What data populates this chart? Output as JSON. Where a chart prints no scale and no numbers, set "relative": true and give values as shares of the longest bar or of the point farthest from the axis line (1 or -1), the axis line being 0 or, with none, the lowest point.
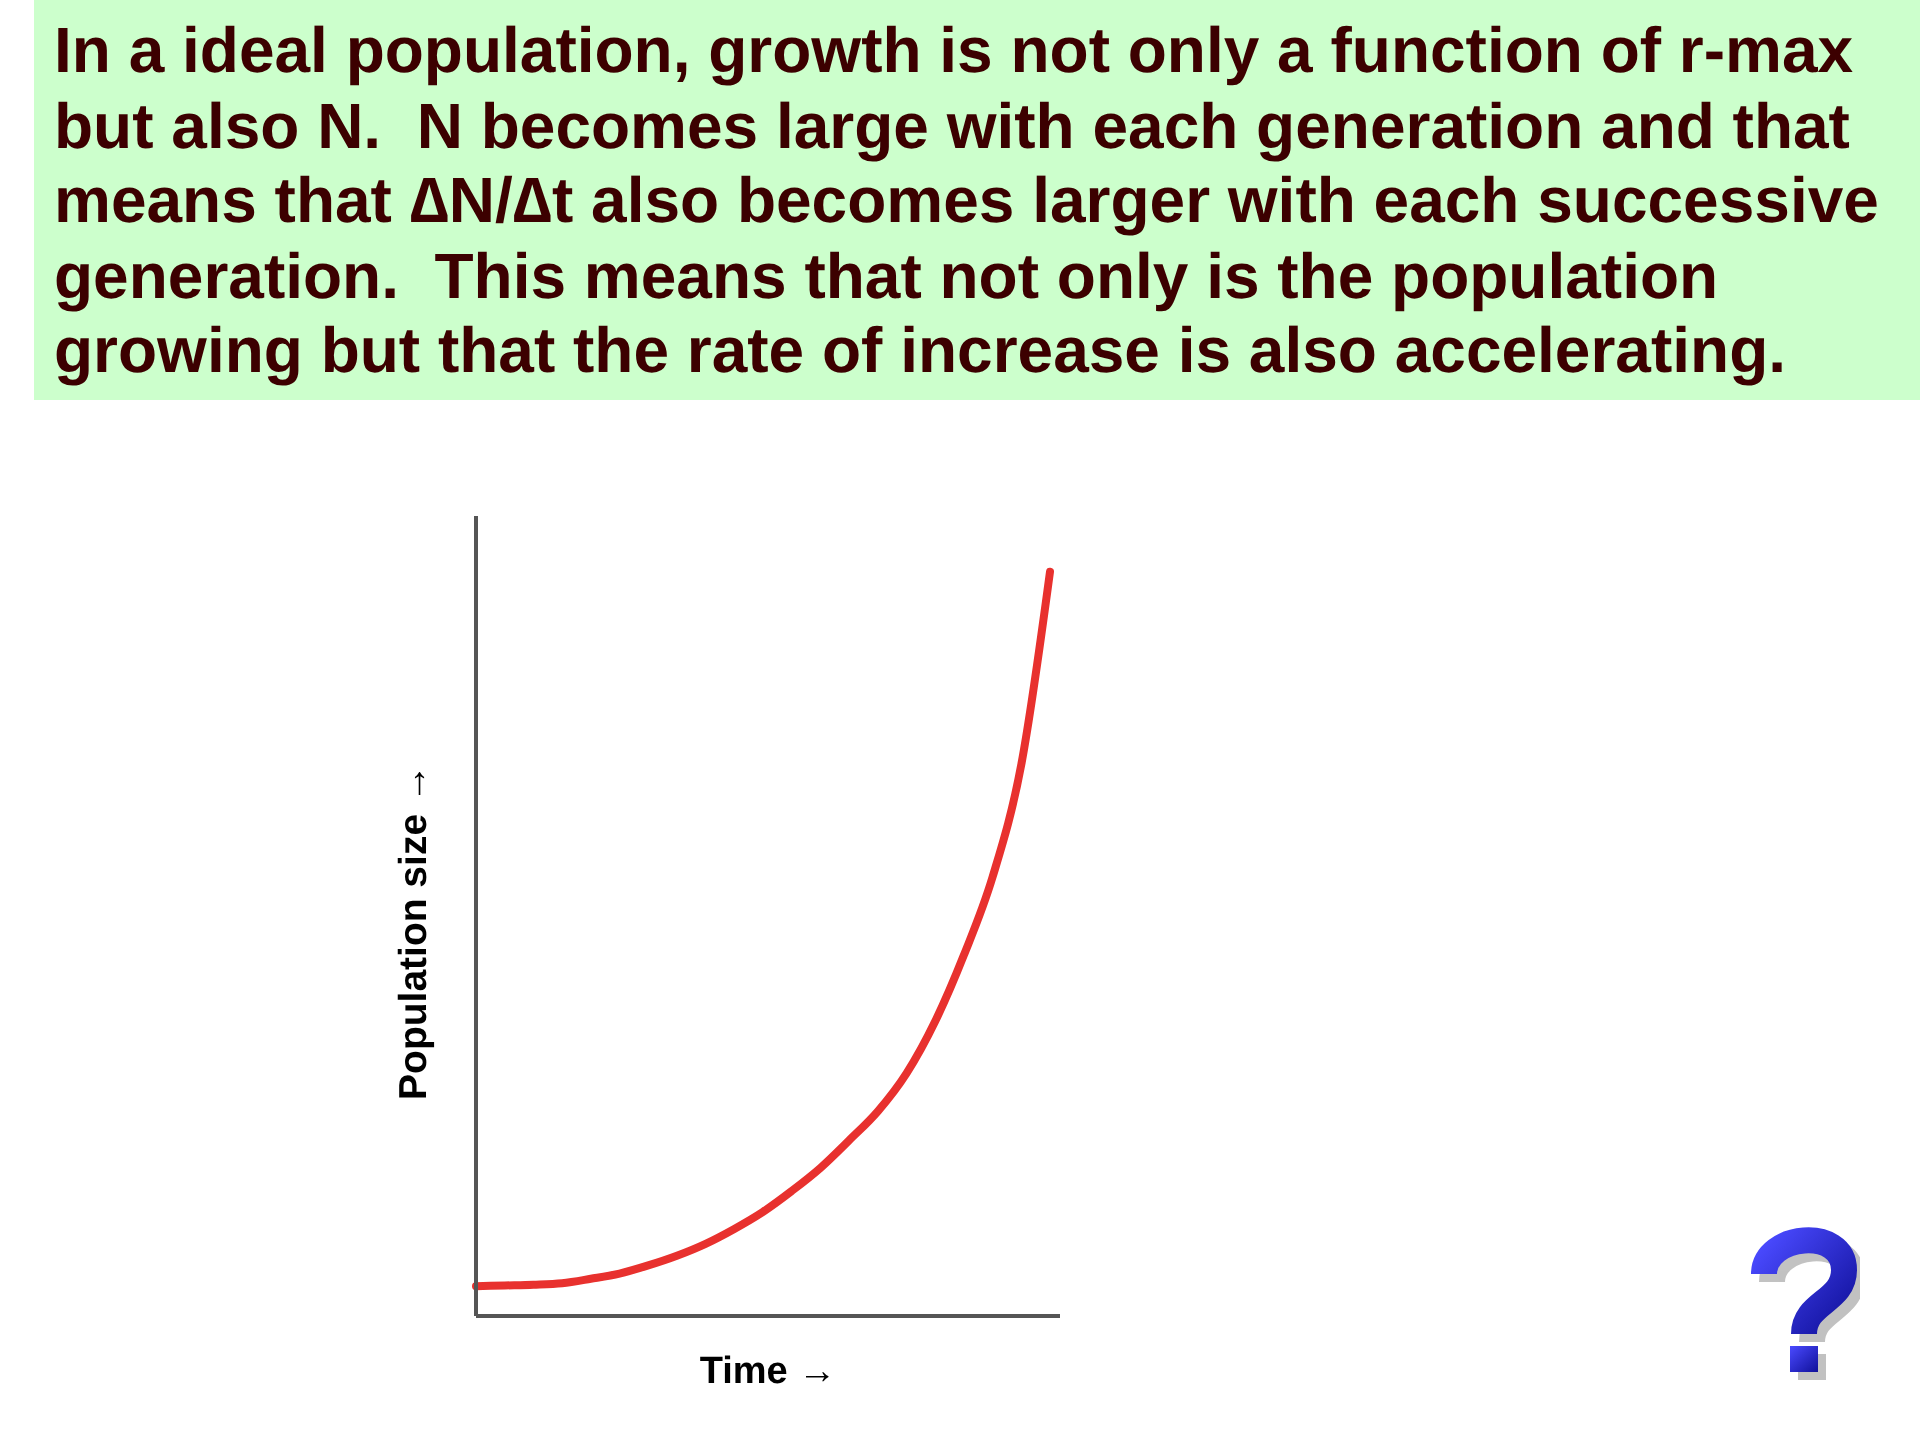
{
  "chart_data": {
    "type": "line",
    "title": "In a ideal population, growth is not only a function of r-max but also N.  N becomes large with each generation and that means that ∆N/∆t also becomes larger with each successive generation.  This means that not only is the population growing but that the rate of increase is also accelerating.",
    "xlabel": "Time →",
    "ylabel": "Population size →",
    "relative": true,
    "categories": [
      null,
      null,
      null,
      null,
      null,
      null,
      null,
      null,
      null,
      null,
      null,
      null,
      null,
      null,
      null,
      null,
      null,
      null,
      null,
      null,
      null
    ],
    "values": [
      0.04,
      0.041,
      0.042,
      0.044,
      0.05,
      0.057,
      0.068,
      0.081,
      0.097,
      0.117,
      0.14,
      0.168,
      0.199,
      0.236,
      0.275,
      0.326,
      0.396,
      0.485,
      0.59,
      0.741,
      1
    ],
    "color": "#e8312e"
  }
}
